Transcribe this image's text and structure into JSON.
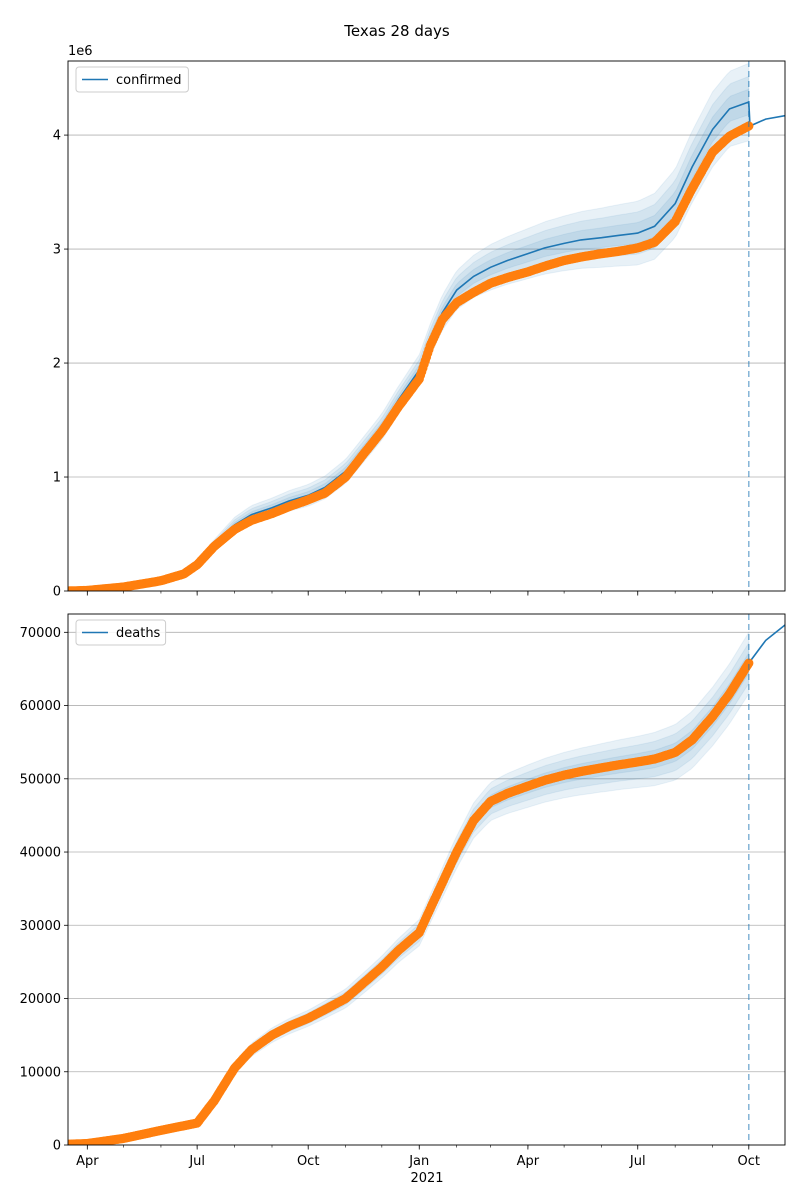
{
  "figure": {
    "title": "Texas 28 days",
    "x_ticks": [
      "Apr",
      "Jul",
      "Oct",
      "Jan",
      "Apr",
      "Jul",
      "Oct"
    ],
    "x_year_label": "2021",
    "colors": {
      "series": "#1f77b4",
      "observed": "#ff7f0e",
      "band": "#1f77b4",
      "grid": "#b0b0b0",
      "cutoff": "#1f77b4"
    }
  },
  "chart_data": [
    {
      "type": "line",
      "title": "",
      "legend": [
        "confirmed"
      ],
      "legend_position": "top-left",
      "y_offset_label": "1e6",
      "y_scale": 1000000,
      "ylim": [
        0,
        4650000
      ],
      "y_ticks": [
        0,
        1,
        2,
        3,
        4
      ],
      "xlim": [
        "2020-03-16",
        "2021-10-31"
      ],
      "x_ticks": [
        "2020-04-01",
        "2020-07-01",
        "2020-10-01",
        "2021-01-01",
        "2021-04-01",
        "2021-07-01",
        "2021-10-01"
      ],
      "grid": "horizontal",
      "forecast_start": "2021-10-01",
      "series": [
        {
          "name": "confirmed",
          "kind": "model",
          "x": [
            "2020-03-16",
            "2020-04-01",
            "2020-05-01",
            "2020-06-01",
            "2020-06-20",
            "2020-07-01",
            "2020-07-15",
            "2020-08-01",
            "2020-08-15",
            "2020-09-01",
            "2020-09-15",
            "2020-10-01",
            "2020-10-15",
            "2020-11-01",
            "2020-11-15",
            "2020-12-01",
            "2020-12-15",
            "2021-01-01",
            "2021-01-10",
            "2021-01-20",
            "2021-02-01",
            "2021-02-15",
            "2021-03-01",
            "2021-03-15",
            "2021-04-01",
            "2021-04-15",
            "2021-05-01",
            "2021-05-15",
            "2021-06-01",
            "2021-06-15",
            "2021-07-01",
            "2021-07-15",
            "2021-08-01",
            "2021-08-15",
            "2021-09-01",
            "2021-09-15",
            "2021-10-01",
            "2021-10-02",
            "2021-10-15",
            "2021-10-31"
          ],
          "y": [
            0,
            5000,
            35000,
            90000,
            150000,
            230000,
            400000,
            580000,
            670000,
            730000,
            790000,
            840000,
            910000,
            1050000,
            1230000,
            1440000,
            1680000,
            1940000,
            2200000,
            2440000,
            2640000,
            2760000,
            2840000,
            2900000,
            2960000,
            3010000,
            3050000,
            3080000,
            3100000,
            3120000,
            3140000,
            3200000,
            3400000,
            3720000,
            4050000,
            4230000,
            4290000,
            4080000,
            4140000,
            4170000
          ]
        },
        {
          "name": "confirmed observed",
          "kind": "observed",
          "x": [
            "2020-03-16",
            "2020-04-01",
            "2020-05-01",
            "2020-06-01",
            "2020-06-20",
            "2020-07-01",
            "2020-07-15",
            "2020-08-01",
            "2020-08-15",
            "2020-09-01",
            "2020-09-15",
            "2020-10-01",
            "2020-10-15",
            "2020-11-01",
            "2020-11-15",
            "2020-12-01",
            "2020-12-15",
            "2021-01-01",
            "2021-01-10",
            "2021-01-20",
            "2021-02-01",
            "2021-02-15",
            "2021-03-01",
            "2021-03-15",
            "2021-04-01",
            "2021-04-15",
            "2021-05-01",
            "2021-05-15",
            "2021-06-01",
            "2021-06-15",
            "2021-07-01",
            "2021-07-15",
            "2021-08-01",
            "2021-08-15",
            "2021-09-01",
            "2021-09-15",
            "2021-10-01"
          ],
          "y": [
            0,
            5000,
            35000,
            90000,
            150000,
            230000,
            390000,
            540000,
            620000,
            680000,
            740000,
            800000,
            860000,
            1000000,
            1190000,
            1400000,
            1620000,
            1860000,
            2150000,
            2380000,
            2530000,
            2620000,
            2700000,
            2750000,
            2800000,
            2850000,
            2900000,
            2930000,
            2960000,
            2980000,
            3010000,
            3060000,
            3240000,
            3530000,
            3850000,
            3990000,
            4080000
          ]
        }
      ],
      "bands": {
        "x": [
          "2020-03-16",
          "2020-05-01",
          "2020-06-20",
          "2020-07-15",
          "2020-08-15",
          "2020-09-15",
          "2020-10-15",
          "2020-11-15",
          "2020-12-15",
          "2021-01-10",
          "2021-02-01",
          "2021-03-01",
          "2021-04-01",
          "2021-05-01",
          "2021-06-01",
          "2021-07-01",
          "2021-08-01",
          "2021-09-01",
          "2021-09-15",
          "2021-10-01"
        ],
        "width": [
          0,
          2000,
          20000,
          50000,
          80000,
          90000,
          100000,
          110000,
          120000,
          140000,
          170000,
          200000,
          220000,
          240000,
          260000,
          280000,
          300000,
          330000,
          330000,
          340000
        ]
      }
    },
    {
      "type": "line",
      "title": "",
      "legend": [
        "deaths"
      ],
      "legend_position": "top-left",
      "ylim": [
        0,
        72500
      ],
      "y_ticks": [
        0,
        10000,
        20000,
        30000,
        40000,
        50000,
        60000,
        70000
      ],
      "xlim": [
        "2020-03-16",
        "2021-10-31"
      ],
      "x_ticks": [
        "2020-04-01",
        "2020-07-01",
        "2020-10-01",
        "2021-01-01",
        "2021-04-01",
        "2021-07-01",
        "2021-10-01"
      ],
      "grid": "horizontal",
      "forecast_start": "2021-10-01",
      "series": [
        {
          "name": "deaths",
          "kind": "model",
          "x": [
            "2020-03-16",
            "2020-04-01",
            "2020-05-01",
            "2020-06-01",
            "2020-07-01",
            "2020-07-15",
            "2020-08-01",
            "2020-08-15",
            "2020-09-01",
            "2020-09-15",
            "2020-10-01",
            "2020-10-15",
            "2020-11-01",
            "2020-11-15",
            "2020-12-01",
            "2020-12-15",
            "2021-01-01",
            "2021-01-15",
            "2021-02-01",
            "2021-02-15",
            "2021-03-01",
            "2021-03-15",
            "2021-04-01",
            "2021-04-15",
            "2021-05-01",
            "2021-05-15",
            "2021-06-01",
            "2021-06-15",
            "2021-07-01",
            "2021-07-15",
            "2021-08-01",
            "2021-08-15",
            "2021-09-01",
            "2021-09-15",
            "2021-10-01",
            "2021-10-15",
            "2021-10-31"
          ],
          "y": [
            100,
            200,
            900,
            2000,
            3000,
            6000,
            10500,
            13000,
            15000,
            16200,
            17300,
            18500,
            20000,
            22000,
            24300,
            26600,
            29000,
            34000,
            40000,
            44300,
            46900,
            48000,
            49000,
            49800,
            50500,
            51000,
            51500,
            51900,
            52300,
            52700,
            53600,
            55300,
            58500,
            61600,
            65800,
            68900,
            71000
          ]
        },
        {
          "name": "deaths observed",
          "kind": "observed",
          "x": [
            "2020-03-16",
            "2020-04-01",
            "2020-05-01",
            "2020-06-01",
            "2020-07-01",
            "2020-07-15",
            "2020-08-01",
            "2020-08-15",
            "2020-09-01",
            "2020-09-15",
            "2020-10-01",
            "2020-10-15",
            "2020-11-01",
            "2020-11-15",
            "2020-12-01",
            "2020-12-15",
            "2021-01-01",
            "2021-01-15",
            "2021-02-01",
            "2021-02-15",
            "2021-03-01",
            "2021-03-15",
            "2021-04-01",
            "2021-04-15",
            "2021-05-01",
            "2021-05-15",
            "2021-06-01",
            "2021-06-15",
            "2021-07-01",
            "2021-07-15",
            "2021-08-01",
            "2021-08-15",
            "2021-09-01",
            "2021-09-15",
            "2021-10-01"
          ],
          "y": [
            100,
            200,
            900,
            2000,
            3000,
            6000,
            10500,
            13000,
            15000,
            16200,
            17300,
            18500,
            20000,
            22000,
            24300,
            26600,
            29000,
            34000,
            40000,
            44300,
            46900,
            48000,
            49000,
            49800,
            50500,
            51000,
            51500,
            51900,
            52300,
            52700,
            53600,
            55300,
            58500,
            61600,
            65800
          ]
        }
      ],
      "bands": {
        "x": [
          "2020-03-16",
          "2020-05-01",
          "2020-07-01",
          "2020-08-01",
          "2020-09-01",
          "2020-10-01",
          "2020-11-01",
          "2020-12-01",
          "2021-01-01",
          "2021-02-01",
          "2021-03-01",
          "2021-04-01",
          "2021-05-01",
          "2021-06-01",
          "2021-07-01",
          "2021-08-01",
          "2021-09-01",
          "2021-10-01"
        ],
        "width": [
          0,
          50,
          300,
          800,
          1000,
          1100,
          1300,
          1500,
          1800,
          2200,
          2600,
          2900,
          3100,
          3300,
          3500,
          3800,
          4000,
          4200
        ]
      }
    }
  ]
}
